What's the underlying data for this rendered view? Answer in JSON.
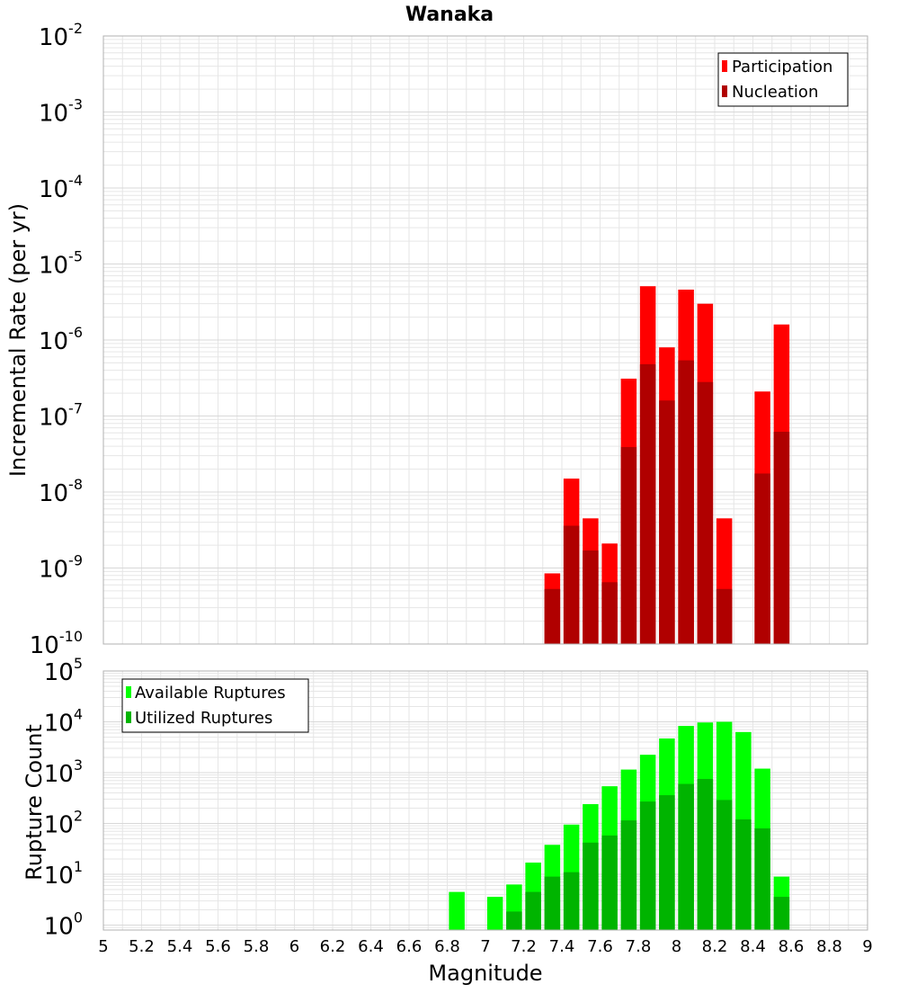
{
  "title": "Wanaka",
  "xlabel": "Magnitude",
  "colors": {
    "participation": "#ff0000",
    "nucleation": "#b00000",
    "available": "#00ff00",
    "utilized": "#00b400",
    "grid": "#e6e6e6",
    "frame": "#b0b0b0"
  },
  "x_axis": {
    "range": [
      5,
      9
    ],
    "ticks": [
      "5",
      "5.2",
      "5.4",
      "5.6",
      "5.8",
      "6",
      "6.2",
      "6.4",
      "6.6",
      "6.8",
      "7",
      "7.2",
      "7.4",
      "7.6",
      "7.8",
      "8",
      "8.2",
      "8.4",
      "8.6",
      "8.8",
      "9"
    ]
  },
  "chart_data": [
    {
      "type": "bar",
      "title": "Wanaka",
      "ylabel": "Incremental Rate (per yr)",
      "yscale": "log",
      "ylim": [
        1e-10,
        0.01
      ],
      "yticks": [
        {
          "base": "10",
          "exp": "-2"
        },
        {
          "base": "10",
          "exp": "-3"
        },
        {
          "base": "10",
          "exp": "-4"
        },
        {
          "base": "10",
          "exp": "-5"
        },
        {
          "base": "10",
          "exp": "-6"
        },
        {
          "base": "10",
          "exp": "-7"
        },
        {
          "base": "10",
          "exp": "-8"
        },
        {
          "base": "10",
          "exp": "-9"
        },
        {
          "base": "10",
          "exp": "-10"
        }
      ],
      "legend_position": "top-right",
      "x": [
        7.35,
        7.45,
        7.55,
        7.65,
        7.75,
        7.85,
        7.95,
        8.05,
        8.15,
        8.25,
        8.35,
        8.45,
        8.55
      ],
      "series": [
        {
          "name": "Participation",
          "values": [
            8.5e-10,
            1.5e-08,
            4.5e-09,
            2.1e-09,
            3.1e-07,
            5.1e-06,
            8e-07,
            4.6e-06,
            3e-06,
            4.5e-09,
            null,
            2.1e-07,
            1.6e-06
          ]
        },
        {
          "name": "Nucleation",
          "values": [
            5.3e-10,
            3.6e-09,
            1.7e-09,
            6.5e-10,
            3.9e-08,
            4.8e-07,
            1.6e-07,
            5.4e-07,
            2.8e-07,
            5.3e-10,
            null,
            1.75e-08,
            6.2e-08
          ]
        }
      ]
    },
    {
      "type": "bar",
      "xlabel": "Magnitude",
      "ylabel": "Rupture Count",
      "yscale": "log",
      "ylim": [
        0.8,
        100000
      ],
      "yticks": [
        {
          "base": "10",
          "exp": "5"
        },
        {
          "base": "10",
          "exp": "4"
        },
        {
          "base": "10",
          "exp": "3"
        },
        {
          "base": "10",
          "exp": "2"
        },
        {
          "base": "10",
          "exp": "1"
        },
        {
          "base": "10",
          "exp": "0"
        }
      ],
      "legend_position": "top-left",
      "x": [
        6.85,
        6.95,
        7.05,
        7.15,
        7.25,
        7.35,
        7.45,
        7.55,
        7.65,
        7.75,
        7.85,
        7.95,
        8.05,
        8.15,
        8.25,
        8.35,
        8.45,
        8.55
      ],
      "series": [
        {
          "name": "Available Ruptures",
          "values": [
            4.5,
            null,
            3.6,
            6.3,
            17,
            38,
            95,
            240,
            540,
            1150,
            2250,
            4700,
            8300,
            9700,
            10000,
            6300,
            1200,
            9
          ]
        },
        {
          "name": "Utilized Ruptures",
          "values": [
            null,
            null,
            null,
            1.85,
            4.5,
            9,
            11,
            42,
            58,
            115,
            270,
            360,
            600,
            750,
            290,
            120,
            80,
            3.6
          ]
        }
      ]
    }
  ]
}
